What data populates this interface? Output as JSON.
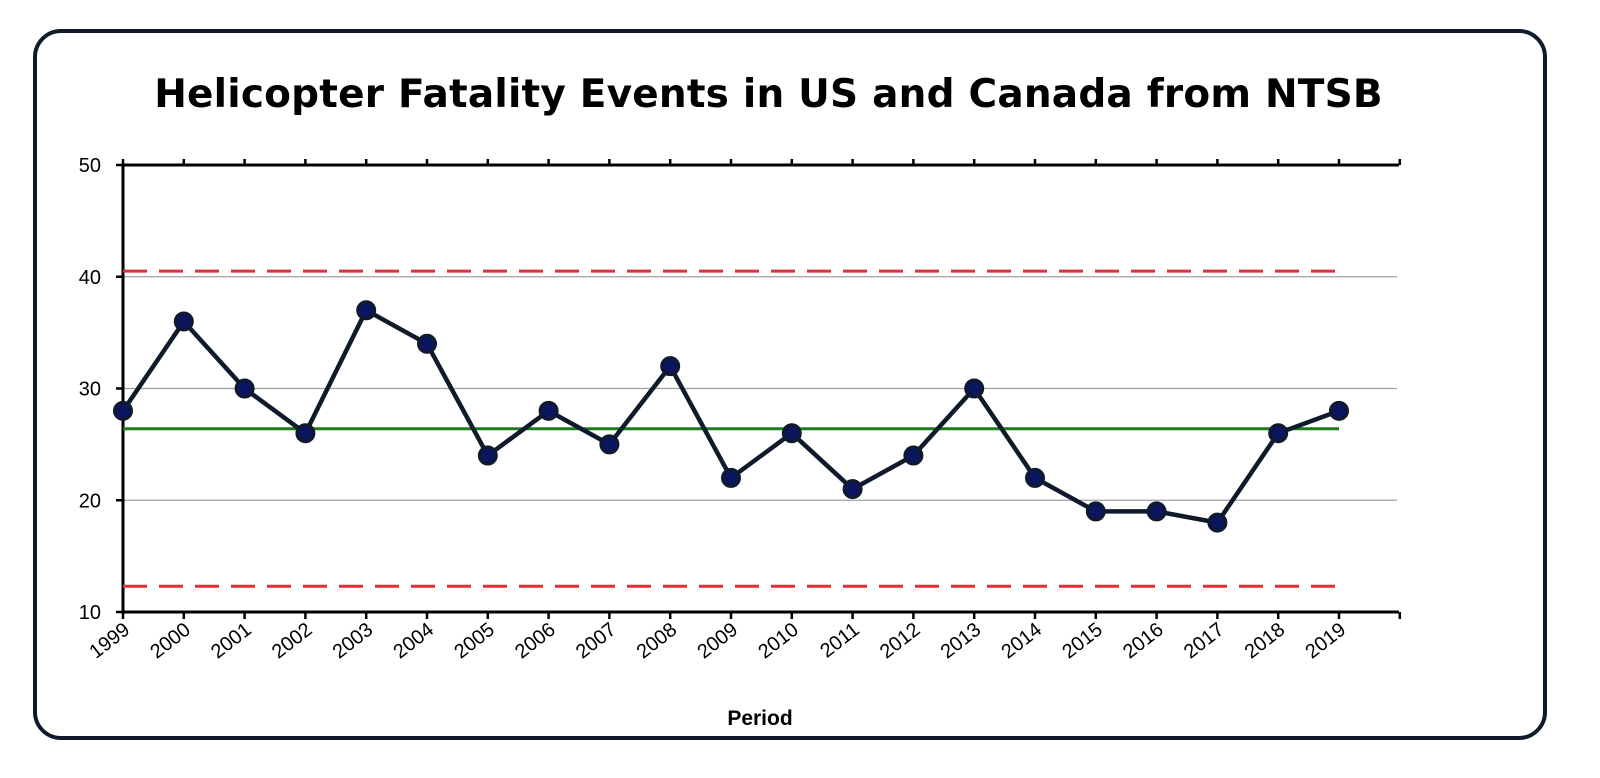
{
  "chart_data": {
    "type": "line",
    "title": "Helicopter Fatality Events in US and Canada from NTSB",
    "xlabel": "Period",
    "ylabel": "",
    "x": [
      "1999",
      "2000",
      "2001",
      "2002",
      "2003",
      "2004",
      "2005",
      "2006",
      "2007",
      "2008",
      "2009",
      "2010",
      "2011",
      "2012",
      "2013",
      "2014",
      "2015",
      "2016",
      "2017",
      "2018",
      "2019"
    ],
    "series": [
      {
        "values": [
          28,
          36,
          30,
          26,
          37,
          34,
          24,
          28,
          25,
          32,
          22,
          26,
          21,
          24,
          30,
          22,
          19,
          19,
          18,
          26,
          28
        ]
      }
    ],
    "reference_lines": [
      {
        "kind": "center",
        "value": 26.4,
        "style": "solid",
        "color": "#1e7a1e"
      },
      {
        "kind": "upper-limit",
        "value": 40.5,
        "style": "dashed",
        "color": "#e0303a"
      },
      {
        "kind": "lower-limit",
        "value": 12.3,
        "style": "dashed",
        "color": "#e0303a"
      }
    ],
    "ylim": [
      10,
      50
    ],
    "yticks": [
      10,
      20,
      30,
      40,
      50
    ],
    "grid": true,
    "legend": "none",
    "colors": {
      "line": "#0f1a2b",
      "marker": "#0b1560",
      "grid": "#a0a0a0",
      "axis": "#000000"
    }
  }
}
